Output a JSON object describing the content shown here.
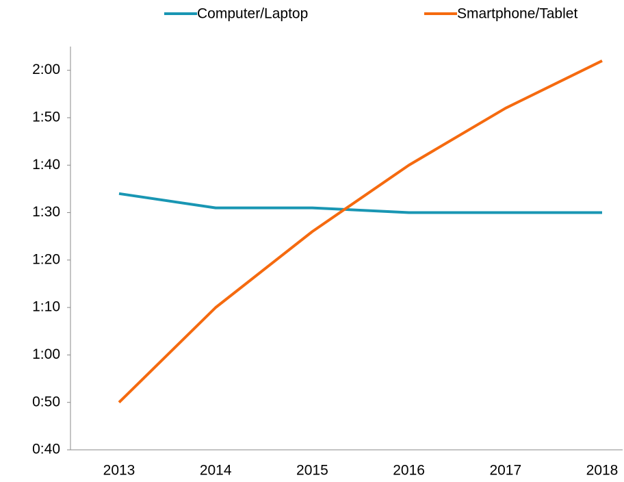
{
  "chart_data": {
    "type": "line",
    "categories": [
      "2013",
      "2014",
      "2015",
      "2016",
      "2017",
      "2018"
    ],
    "series": [
      {
        "name": "Computer/Laptop",
        "color": "#1996b3",
        "values": [
          94,
          91,
          91,
          90,
          90,
          90
        ]
      },
      {
        "name": "Smartphone/Tablet",
        "color": "#f56a0f",
        "values": [
          50,
          70,
          86,
          100,
          112,
          122
        ]
      }
    ],
    "ylim": [
      40,
      125
    ],
    "yticks": [
      {
        "value": 40,
        "label": "0:40"
      },
      {
        "value": 50,
        "label": "0:50"
      },
      {
        "value": 60,
        "label": "1:00"
      },
      {
        "value": 70,
        "label": "1:10"
      },
      {
        "value": 80,
        "label": "1:20"
      },
      {
        "value": 90,
        "label": "1:30"
      },
      {
        "value": 100,
        "label": "1:40"
      },
      {
        "value": 110,
        "label": "1:50"
      },
      {
        "value": 120,
        "label": "2:00"
      }
    ],
    "legend": "top"
  }
}
